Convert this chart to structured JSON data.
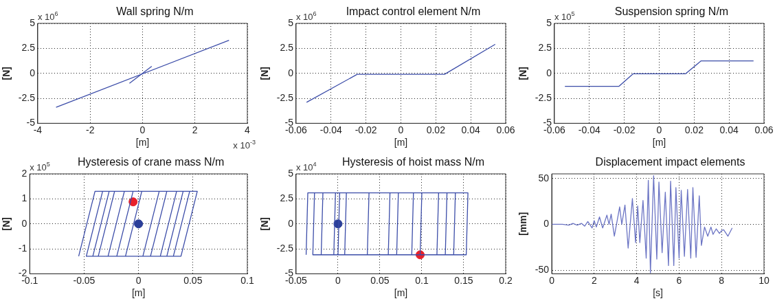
{
  "chart_data": [
    {
      "type": "line",
      "title": "Wall spring N/m",
      "xlabel": "[m]",
      "ylabel": "[N]",
      "xlim": [
        -4,
        4
      ],
      "xticks": [
        -4,
        -2,
        0,
        2,
        4
      ],
      "ylim": [
        -5,
        5
      ],
      "yticks": [
        -5,
        -2.5,
        0,
        2.5,
        5
      ],
      "grid": true,
      "legend": false,
      "annotations": [
        "x 10$^{6}$",
        "x 10$^{-3}$"
      ],
      "series": [
        {
          "type": "line",
          "color": "#3b4ca8",
          "marker": "none",
          "x": [
            -3.3,
            3.3
          ],
          "values": [
            -3.4,
            3.3
          ]
        },
        {
          "type": "line",
          "color": "#3b4ca8",
          "marker": "none",
          "x": [
            -0.5,
            0.35
          ],
          "values": [
            -1.0,
            0.7
          ]
        }
      ]
    },
    {
      "type": "line",
      "title": "Impact control element N/m",
      "xlabel": "[m]",
      "ylabel": "[N]",
      "xlim": [
        -0.06,
        0.06
      ],
      "xticks": [
        -0.06,
        -0.04,
        -0.02,
        0,
        0.02,
        0.04,
        0.06
      ],
      "ylim": [
        -5,
        5
      ],
      "yticks": [
        -5,
        -2.5,
        0,
        2.5,
        5
      ],
      "grid": true,
      "legend": false,
      "annotations": [
        "x 10$^{6}$"
      ],
      "series": [
        {
          "type": "line",
          "color": "#3b4ca8",
          "marker": "none",
          "x": [
            -0.054,
            -0.025,
            0.025,
            0.054
          ],
          "values": [
            -2.9,
            -0.1,
            -0.1,
            2.9
          ]
        }
      ]
    },
    {
      "type": "line",
      "title": "Suspension spring N/m",
      "xlabel": "[m]",
      "ylabel": "[N]",
      "xlim": [
        -0.06,
        0.06
      ],
      "xticks": [
        -0.06,
        -0.04,
        -0.02,
        0,
        0.02,
        0.04,
        0.06
      ],
      "ylim": [
        -5,
        5
      ],
      "yticks": [
        -5,
        -2.5,
        0,
        2.5,
        5
      ],
      "grid": true,
      "legend": false,
      "annotations": [
        "x 10$^{5}$"
      ],
      "series": [
        {
          "type": "line",
          "color": "#3b4ca8",
          "marker": "none",
          "x": [
            -0.054,
            -0.023,
            -0.015,
            0.015,
            0.024,
            0.054
          ],
          "values": [
            -1.3,
            -1.3,
            -0.05,
            -0.05,
            1.25,
            1.25
          ]
        }
      ]
    },
    {
      "type": "line",
      "title": "Hysteresis of crane mass N/m",
      "xlabel": "[m]",
      "ylabel": "[N]",
      "xlim": [
        -0.1,
        0.1
      ],
      "xticks": [
        -0.1,
        -0.05,
        0,
        0.05,
        0.1
      ],
      "ylim": [
        -2,
        2
      ],
      "yticks": [
        -2,
        -1,
        0,
        1,
        2
      ],
      "grid": true,
      "legend": false,
      "annotations": [
        "x 10$^{5}$"
      ],
      "series": [
        {
          "type": "line",
          "color": "#3b4ca8",
          "marker": "none",
          "x": [
            -0.055,
            -0.04,
            0.054,
            0.039,
            -0.048,
            -0.033,
            0.035,
            0.02,
            -0.037,
            -0.022,
            0.047,
            0.032,
            -0.028,
            -0.013,
            0.026,
            0.011,
            -0.042,
            -0.027,
            0.041,
            0.026,
            -0.02,
            -0.005,
            0.019,
            0.004,
            -0.012,
            0.003
          ],
          "values": [
            -1.3,
            1.3,
            1.3,
            -1.3,
            -1.3,
            1.3,
            1.3,
            -1.3,
            -1.3,
            1.3,
            1.3,
            -1.3,
            -1.3,
            1.3,
            1.3,
            -1.3,
            -1.3,
            1.3,
            1.3,
            -1.3,
            -1.3,
            1.3,
            1.3,
            -1.3,
            -1.3,
            1.3
          ]
        },
        {
          "type": "scatter",
          "color": "#e8202a",
          "marker": "circle",
          "x": [
            -0.005
          ],
          "values": [
            0.88
          ]
        },
        {
          "type": "scatter",
          "color": "#2b3f99",
          "marker": "circle",
          "x": [
            0
          ],
          "values": [
            0
          ]
        }
      ]
    },
    {
      "type": "line",
      "title": "Hysteresis of hoist mass N/m",
      "xlabel": "[m]",
      "ylabel": "[N]",
      "xlim": [
        -0.05,
        0.2
      ],
      "xticks": [
        -0.05,
        0,
        0.05,
        0.1,
        0.15,
        0.2
      ],
      "ylim": [
        -5,
        5
      ],
      "yticks": [
        -5,
        -2.5,
        0,
        2.5,
        5
      ],
      "grid": true,
      "legend": false,
      "annotations": [
        "x 10$^{4}$"
      ],
      "series": [
        {
          "type": "line",
          "color": "#3b4ca8",
          "marker": "none",
          "x": [
            -0.038,
            -0.036,
            0.155,
            0.153,
            -0.02,
            -0.018,
            0.14,
            0.138,
            -0.005,
            -0.003,
            0.1,
            0.098,
            0.035,
            0.037,
            0.12,
            0.118,
            0.06,
            0.062,
            0.13,
            0.128,
            0.008,
            0.01,
            0.072,
            0.07,
            -0.03,
            -0.028,
            0.09,
            0.088,
            0,
            0.002
          ],
          "values": [
            -3.1,
            3.1,
            3.1,
            -3.1,
            -3.1,
            3.1,
            3.1,
            -3.1,
            -3.1,
            3.1,
            3.1,
            -3.1,
            -3.1,
            3.1,
            3.1,
            -3.1,
            -3.1,
            3.1,
            3.1,
            -3.1,
            -3.1,
            3.1,
            3.1,
            -3.1,
            -3.1,
            3.1,
            3.1,
            -3.1,
            -3.1,
            3.1
          ]
        },
        {
          "type": "scatter",
          "color": "#2b3f99",
          "marker": "circle",
          "x": [
            0
          ],
          "values": [
            0
          ]
        },
        {
          "type": "scatter",
          "color": "#e8202a",
          "marker": "circle",
          "x": [
            0.098
          ],
          "values": [
            -3.1
          ]
        }
      ]
    },
    {
      "type": "line",
      "title": "Displacement impact elements",
      "xlabel": "[s]",
      "ylabel": "[mm]",
      "xlim": [
        0,
        10
      ],
      "xticks": [
        0,
        2,
        4,
        6,
        8,
        10
      ],
      "ylim": [
        -54,
        55
      ],
      "yticks": [
        -50,
        0,
        50
      ],
      "grid": true,
      "legend": false,
      "series": [
        {
          "type": "line",
          "color": "#6b74c4",
          "marker": "none",
          "x": [
            0,
            0.5,
            0.8,
            1.0,
            1.2,
            1.4,
            1.55,
            1.7,
            1.9,
            2.0,
            2.1,
            2.25,
            2.4,
            2.6,
            2.7,
            2.8,
            2.95,
            3.2,
            3.3,
            3.45,
            3.6,
            3.8,
            3.95,
            4.05,
            4.15,
            4.3,
            4.45,
            4.55,
            4.65,
            4.8,
            4.95,
            5.05,
            5.2,
            5.35,
            5.5,
            5.6,
            5.75,
            5.85,
            6.0,
            6.1,
            6.25,
            6.4,
            6.55,
            6.65,
            6.8,
            6.95,
            7.05,
            7.2,
            7.35,
            7.5,
            7.6,
            7.75,
            7.9,
            8.0,
            8.1,
            8.3,
            8.5
          ],
          "values": [
            0,
            0,
            -1,
            1,
            -1,
            1,
            -2,
            3,
            -4,
            4,
            -3,
            8,
            -4,
            10,
            0,
            11,
            -13,
            19,
            0,
            21,
            -26,
            28,
            -20,
            20,
            -20,
            26,
            -37,
            48,
            -53,
            53,
            -38,
            46,
            -31,
            35,
            -45,
            47,
            -45,
            40,
            -37,
            37,
            -35,
            38,
            -37,
            40,
            -36,
            31,
            -23,
            -3,
            -13,
            -3,
            -11,
            -5,
            -10,
            -7,
            -6,
            -13,
            -4
          ]
        }
      ]
    }
  ]
}
